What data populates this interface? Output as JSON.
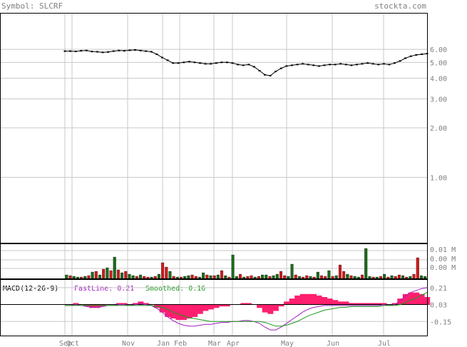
{
  "header": {
    "symbol_label": "Symbol: SLCRF",
    "site": "stockta.com"
  },
  "colors": {
    "price": "#000000",
    "volume_up": "#1a6b1a",
    "volume_down": "#d11a1a",
    "histogram": "#ff1f6e",
    "fast": "#a020c0",
    "smooth": "#1a9a1a",
    "grid": "#c8c8c8"
  },
  "chart_data": [
    {
      "type": "line",
      "panel": "price",
      "y_scale": "log",
      "ylim": [
        0.4,
        10
      ],
      "y_ticks": [
        "6.00",
        "5.00",
        "4.00",
        "3.00",
        "2.00",
        "1.00"
      ],
      "y_tick_values": [
        6,
        5,
        4,
        3,
        2,
        1
      ],
      "x_labels": [
        "Sep",
        "Oct",
        "Nov",
        "Jan",
        "Feb",
        "Mar",
        "Apr",
        "May",
        "Jun",
        "Jul"
      ],
      "series": [
        {
          "values": [
            5.85,
            5.85,
            5.83,
            5.88,
            5.9,
            5.82,
            5.8,
            5.75,
            5.78,
            5.85,
            5.9,
            5.88,
            5.92,
            5.95,
            5.9,
            5.85,
            5.8,
            5.6,
            5.35,
            5.15,
            4.95,
            4.95,
            5.0,
            5.05,
            5.0,
            4.95,
            4.9,
            4.9,
            4.95,
            5.0,
            5.0,
            4.95,
            4.85,
            4.8,
            4.85,
            4.7,
            4.45,
            4.2,
            4.15,
            4.4,
            4.6,
            4.75,
            4.8,
            4.85,
            4.9,
            4.85,
            4.8,
            4.75,
            4.8,
            4.85,
            4.85,
            4.9,
            4.85,
            4.8,
            4.85,
            4.9,
            4.95,
            4.9,
            4.85,
            4.9,
            4.85,
            4.95,
            5.1,
            5.3,
            5.45,
            5.55,
            5.6,
            5.65
          ]
        }
      ]
    },
    {
      "type": "bar",
      "panel": "volume",
      "y_ticks": [
        "0.01 M",
        "0.00 M",
        "0.00 M",
        "0.00 M"
      ],
      "values": [
        0.5,
        0.4,
        0.3,
        0.2,
        0.2,
        0.3,
        0.4,
        0.9,
        1.0,
        0.5,
        1.3,
        1.5,
        1.1,
        3.0,
        1.2,
        0.8,
        1.0,
        0.6,
        0.4,
        0.3,
        0.5,
        0.3,
        0.2,
        0.2,
        0.3,
        0.6,
        2.2,
        1.6,
        1.0,
        0.3,
        0.2,
        0.2,
        0.3,
        0.4,
        0.5,
        0.3,
        0.2,
        0.8,
        0.5,
        0.4,
        0.4,
        0.5,
        1.1,
        0.4,
        0.2,
        3.3,
        0.3,
        0.6,
        0.2,
        0.3,
        0.4,
        0.2,
        0.3,
        0.5,
        0.5,
        0.3,
        0.4,
        0.6,
        1.0,
        0.4,
        0.3,
        2.0,
        0.5,
        0.3,
        0.2,
        0.4,
        0.3,
        0.2,
        0.9,
        0.4,
        0.3,
        1.1,
        0.3,
        0.4,
        1.9,
        1.0,
        0.6,
        0.4,
        0.3,
        0.2,
        0.5,
        4.2,
        0.3,
        0.2,
        0.2,
        0.3,
        0.6,
        0.2,
        0.4,
        0.3,
        0.5,
        0.4,
        0.2,
        0.3,
        0.6,
        2.9,
        0.4,
        0.3
      ],
      "up": [
        1,
        0,
        1,
        1,
        0,
        1,
        0,
        1,
        0,
        1,
        0,
        1,
        0,
        1,
        0,
        1,
        0,
        1,
        1,
        0,
        1,
        0,
        0,
        1,
        0,
        1,
        0,
        0,
        1,
        0,
        1,
        0,
        1,
        1,
        0,
        0,
        1,
        1,
        0,
        1,
        0,
        1,
        0,
        1,
        0,
        1,
        1,
        0,
        1,
        0,
        0,
        1,
        0,
        1,
        1,
        0,
        1,
        1,
        0,
        0,
        1,
        1,
        0,
        1,
        0,
        0,
        1,
        0,
        1,
        0,
        0,
        1,
        0,
        1,
        0,
        0,
        1,
        0,
        1,
        1,
        0,
        1,
        1,
        0,
        1,
        0,
        1,
        0,
        1,
        0,
        0,
        1,
        0,
        1,
        0,
        0,
        1,
        1
      ]
    },
    {
      "type": "line",
      "panel": "macd",
      "title": "MACD(12-26-9)",
      "legend": [
        {
          "label": "FastLine: 0.21",
          "color": "#a020c0"
        },
        {
          "label": "Smoothed: 0.16",
          "color": "#1a9a1a"
        }
      ],
      "ylim": [
        -0.3,
        0.3
      ],
      "y_ticks": [
        "0.21",
        "0.03",
        "-0.15"
      ],
      "y_tick_values": [
        0.21,
        0.03,
        -0.15
      ],
      "fast": [
        0.02,
        0.02,
        0.03,
        0.02,
        0.01,
        0.0,
        0.0,
        0.01,
        0.02,
        0.02,
        0.03,
        0.03,
        0.02,
        0.03,
        0.04,
        0.03,
        0.02,
        -0.01,
        -0.05,
        -0.1,
        -0.14,
        -0.17,
        -0.19,
        -0.2,
        -0.2,
        -0.19,
        -0.18,
        -0.18,
        -0.17,
        -0.16,
        -0.16,
        -0.15,
        -0.15,
        -0.14,
        -0.14,
        -0.15,
        -0.17,
        -0.21,
        -0.24,
        -0.24,
        -0.21,
        -0.17,
        -0.13,
        -0.09,
        -0.05,
        -0.02,
        0.0,
        0.01,
        0.02,
        0.02,
        0.02,
        0.02,
        0.02,
        0.02,
        0.02,
        0.02,
        0.02,
        0.02,
        0.02,
        0.03,
        0.02,
        0.03,
        0.07,
        0.12,
        0.16,
        0.18,
        0.2,
        0.21
      ],
      "smooth": [
        0.02,
        0.02,
        0.02,
        0.02,
        0.02,
        0.02,
        0.02,
        0.02,
        0.02,
        0.02,
        0.02,
        0.02,
        0.02,
        0.02,
        0.02,
        0.02,
        0.02,
        0.01,
        0.0,
        -0.02,
        -0.05,
        -0.07,
        -0.09,
        -0.11,
        -0.12,
        -0.13,
        -0.14,
        -0.15,
        -0.15,
        -0.15,
        -0.15,
        -0.15,
        -0.15,
        -0.15,
        -0.15,
        -0.15,
        -0.15,
        -0.16,
        -0.18,
        -0.2,
        -0.2,
        -0.19,
        -0.17,
        -0.15,
        -0.12,
        -0.09,
        -0.07,
        -0.05,
        -0.03,
        -0.02,
        -0.01,
        0.0,
        0.0,
        0.01,
        0.01,
        0.01,
        0.01,
        0.01,
        0.01,
        0.02,
        0.02,
        0.02,
        0.03,
        0.05,
        0.08,
        0.1,
        0.13,
        0.16
      ]
    }
  ]
}
